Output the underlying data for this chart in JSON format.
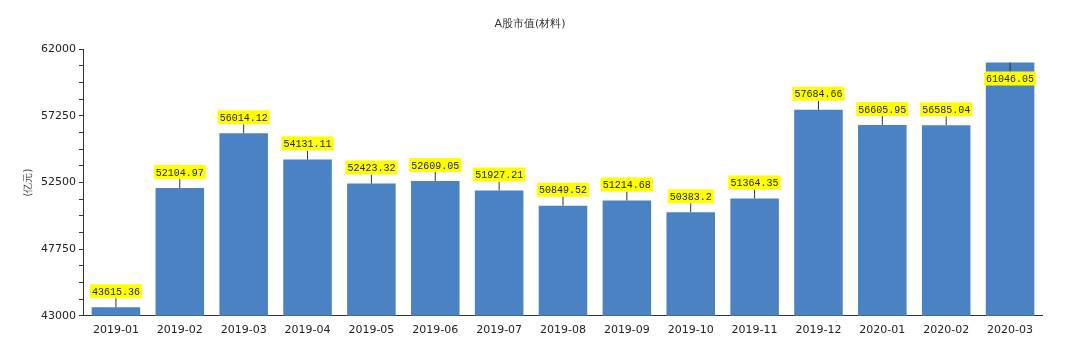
{
  "chart_data": {
    "type": "bar",
    "title": "A股市值(材料)",
    "ylabel": "(亿元)",
    "categories": [
      "2019-01",
      "2019-02",
      "2019-03",
      "2019-04",
      "2019-05",
      "2019-06",
      "2019-07",
      "2019-08",
      "2019-09",
      "2019-10",
      "2019-11",
      "2019-12",
      "2020-01",
      "2020-02",
      "2020-03"
    ],
    "values": [
      43615.36,
      52104.97,
      56014.12,
      54131.11,
      52423.32,
      52609.05,
      51927.21,
      50849.52,
      51214.68,
      50383.2,
      51364.35,
      57684.66,
      56605.95,
      56585.04,
      61046.05
    ],
    "color": "#4a82c4",
    "ylim": [
      43000,
      62000
    ],
    "yticks": [
      43000,
      {
        "value": 44187.5,
        "label": null
      },
      {
        "value": 45375,
        "label": null
      },
      {
        "value": 46562.5,
        "label": null
      },
      47750,
      {
        "value": 48937.5,
        "label": null
      },
      {
        "value": 50125,
        "label": null
      },
      {
        "value": 51312.5,
        "label": null
      },
      52500,
      {
        "value": 53687.5,
        "label": null
      },
      {
        "value": 54875,
        "label": null
      },
      {
        "value": 56062.5,
        "label": null
      },
      57250,
      {
        "value": 58437.5,
        "label": null
      },
      {
        "value": 59625,
        "label": null
      },
      {
        "value": 60812.5,
        "label": null
      },
      62000
    ],
    "grid": false,
    "legend": false,
    "data_labels": true
  }
}
